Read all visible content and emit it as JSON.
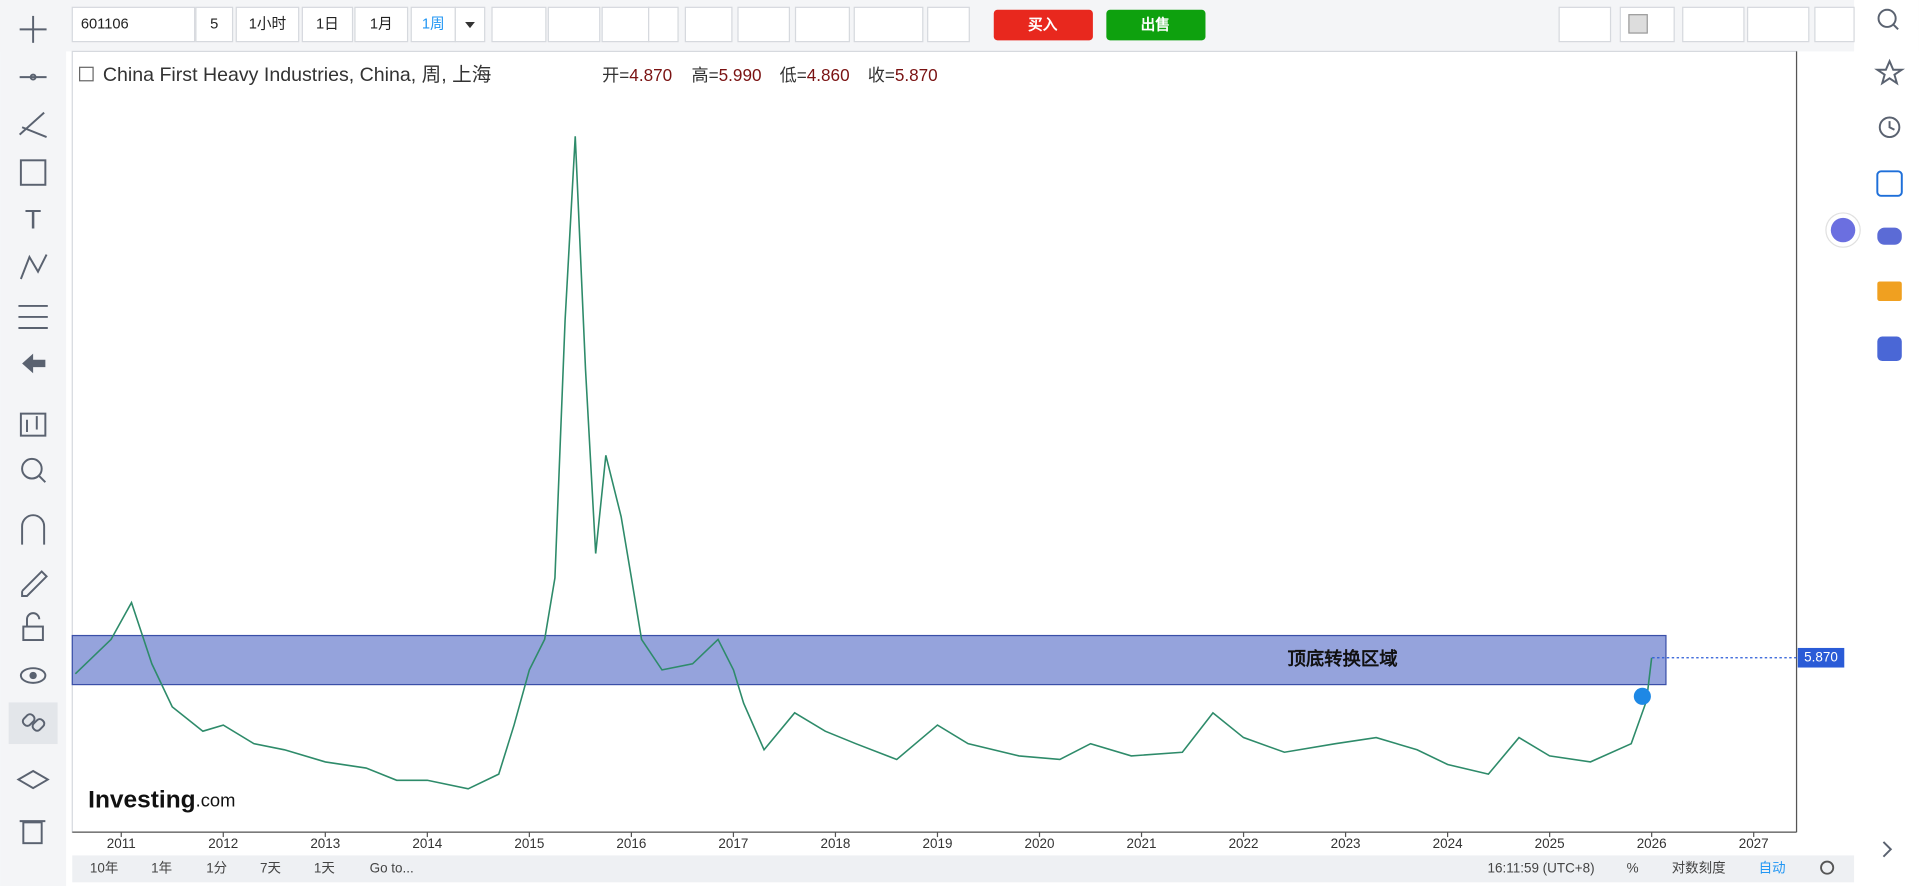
{
  "toolbar": {
    "symbol": "601106",
    "interval_count": "5",
    "intervals": [
      "1小时",
      "1日",
      "1月",
      "1周"
    ],
    "buy": "买入",
    "sell": "出售"
  },
  "legend": {
    "title": "China First Heavy Industries, China, 周, 上海",
    "ohlc": [
      {
        "label": "开=",
        "value": "4.870"
      },
      {
        "label": "高=",
        "value": "5.990"
      },
      {
        "label": "低=",
        "value": "4.860"
      },
      {
        "label": "收=",
        "value": "5.870"
      }
    ]
  },
  "watermark": [
    "Investing",
    ".com"
  ],
  "chart_data": {
    "type": "line",
    "color": "#2e8b6a",
    "grid": false,
    "x": [
      2010.55,
      2010.9,
      2011.1,
      2011.3,
      2011.5,
      2011.8,
      2012.0,
      2012.3,
      2012.6,
      2013.0,
      2013.4,
      2013.7,
      2014.0,
      2014.4,
      2014.7,
      2014.85,
      2015.0,
      2015.15,
      2015.25,
      2015.35,
      2015.45,
      2015.55,
      2015.65,
      2015.75,
      2015.9,
      2016.0,
      2016.1,
      2016.3,
      2016.6,
      2016.85,
      2017.0,
      2017.1,
      2017.3,
      2017.6,
      2017.9,
      2018.2,
      2018.6,
      2019.0,
      2019.3,
      2019.8,
      2020.2,
      2020.5,
      2020.9,
      2021.4,
      2021.7,
      2022.0,
      2022.4,
      2022.9,
      2023.3,
      2023.7,
      2024.0,
      2024.4,
      2024.7,
      2025.0,
      2025.4,
      2025.8,
      2025.95,
      2026.0
    ],
    "values": [
      5.42,
      6.38,
      7.41,
      5.7,
      4.5,
      3.82,
      3.99,
      3.47,
      3.3,
      2.96,
      2.79,
      2.45,
      2.45,
      2.21,
      2.62,
      3.99,
      5.53,
      6.38,
      8.1,
      15.29,
      20.43,
      13.92,
      8.78,
      11.52,
      9.81,
      8.1,
      6.38,
      5.53,
      5.7,
      6.38,
      5.53,
      4.6,
      3.3,
      4.33,
      3.82,
      3.47,
      3.03,
      3.99,
      3.47,
      3.13,
      3.03,
      3.47,
      3.13,
      3.23,
      4.33,
      3.64,
      3.23,
      3.47,
      3.64,
      3.3,
      2.89,
      2.62,
      3.64,
      3.13,
      2.96,
      3.47,
      4.67,
      5.87
    ],
    "xlim": [
      2010.52,
      2027.42
    ],
    "ylim": [
      1,
      22.8
    ],
    "xticks": [
      2011,
      2012,
      2013,
      2014,
      2015,
      2016,
      2017,
      2018,
      2019,
      2020,
      2021,
      2022,
      2023,
      2024,
      2025,
      2026,
      2027
    ],
    "last_price": {
      "value": 5.87,
      "label": "5.870"
    },
    "zone": {
      "label": "顶底转换区域",
      "low": 5.12,
      "high": 6.49,
      "end": 2026.14
    }
  },
  "bottom_bar": {
    "ranges": [
      "10年",
      "1年",
      "1分",
      "7天",
      "1天",
      "Go to..."
    ],
    "time": "16:11:59 (UTC+8)",
    "options": [
      "%",
      "对数刻度",
      "自动"
    ]
  }
}
